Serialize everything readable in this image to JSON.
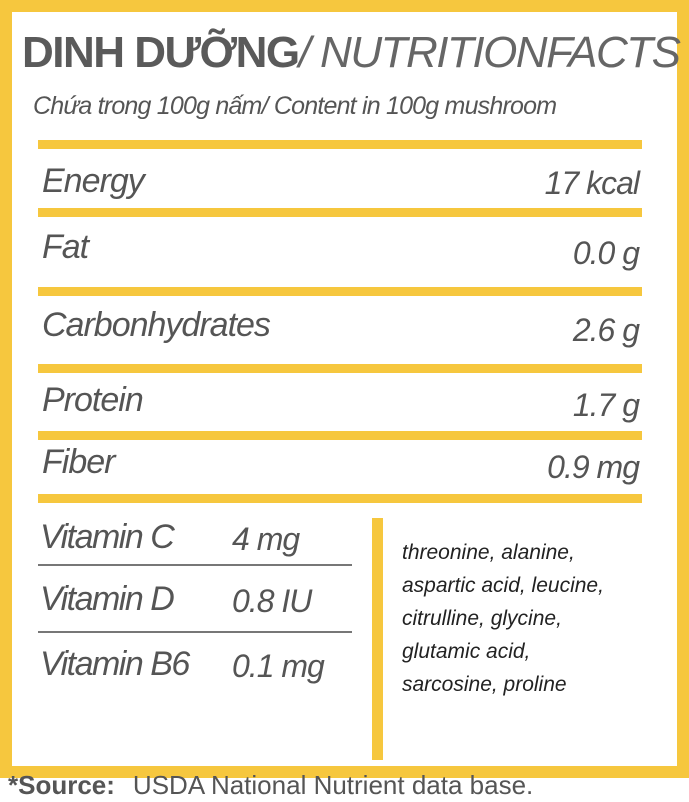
{
  "header": {
    "title_bold": "DINH DƯỠNG",
    "title_rest": "/ NUTRITIONFACTS",
    "subtitle": "Chứa trong 100g nấm/ Content in 100g mushroom"
  },
  "nutrients": [
    {
      "name": "Energy",
      "amount": "17 kcal"
    },
    {
      "name": "Fat",
      "amount": "0.0 g"
    },
    {
      "name": "Carbonhydrates",
      "amount": "2.6 g"
    },
    {
      "name": "Protein",
      "amount": "1.7 g"
    },
    {
      "name": "Fiber",
      "amount": "0.9 mg"
    }
  ],
  "vitamins": [
    {
      "name": "Vitamin C",
      "amount": "4 mg"
    },
    {
      "name": "Vitamin D",
      "amount": "0.8 IU"
    },
    {
      "name": "Vitamin B6",
      "amount": "0.1 mg"
    }
  ],
  "amino_acids": [
    "threonine, alanine,",
    "aspartic acid, leucine,",
    "citrulline, glycine,",
    "glutamic acid,",
    "sarcosine, proline"
  ],
  "source": {
    "label": "*Source:",
    "text": "USDA National Nutrient data base."
  }
}
